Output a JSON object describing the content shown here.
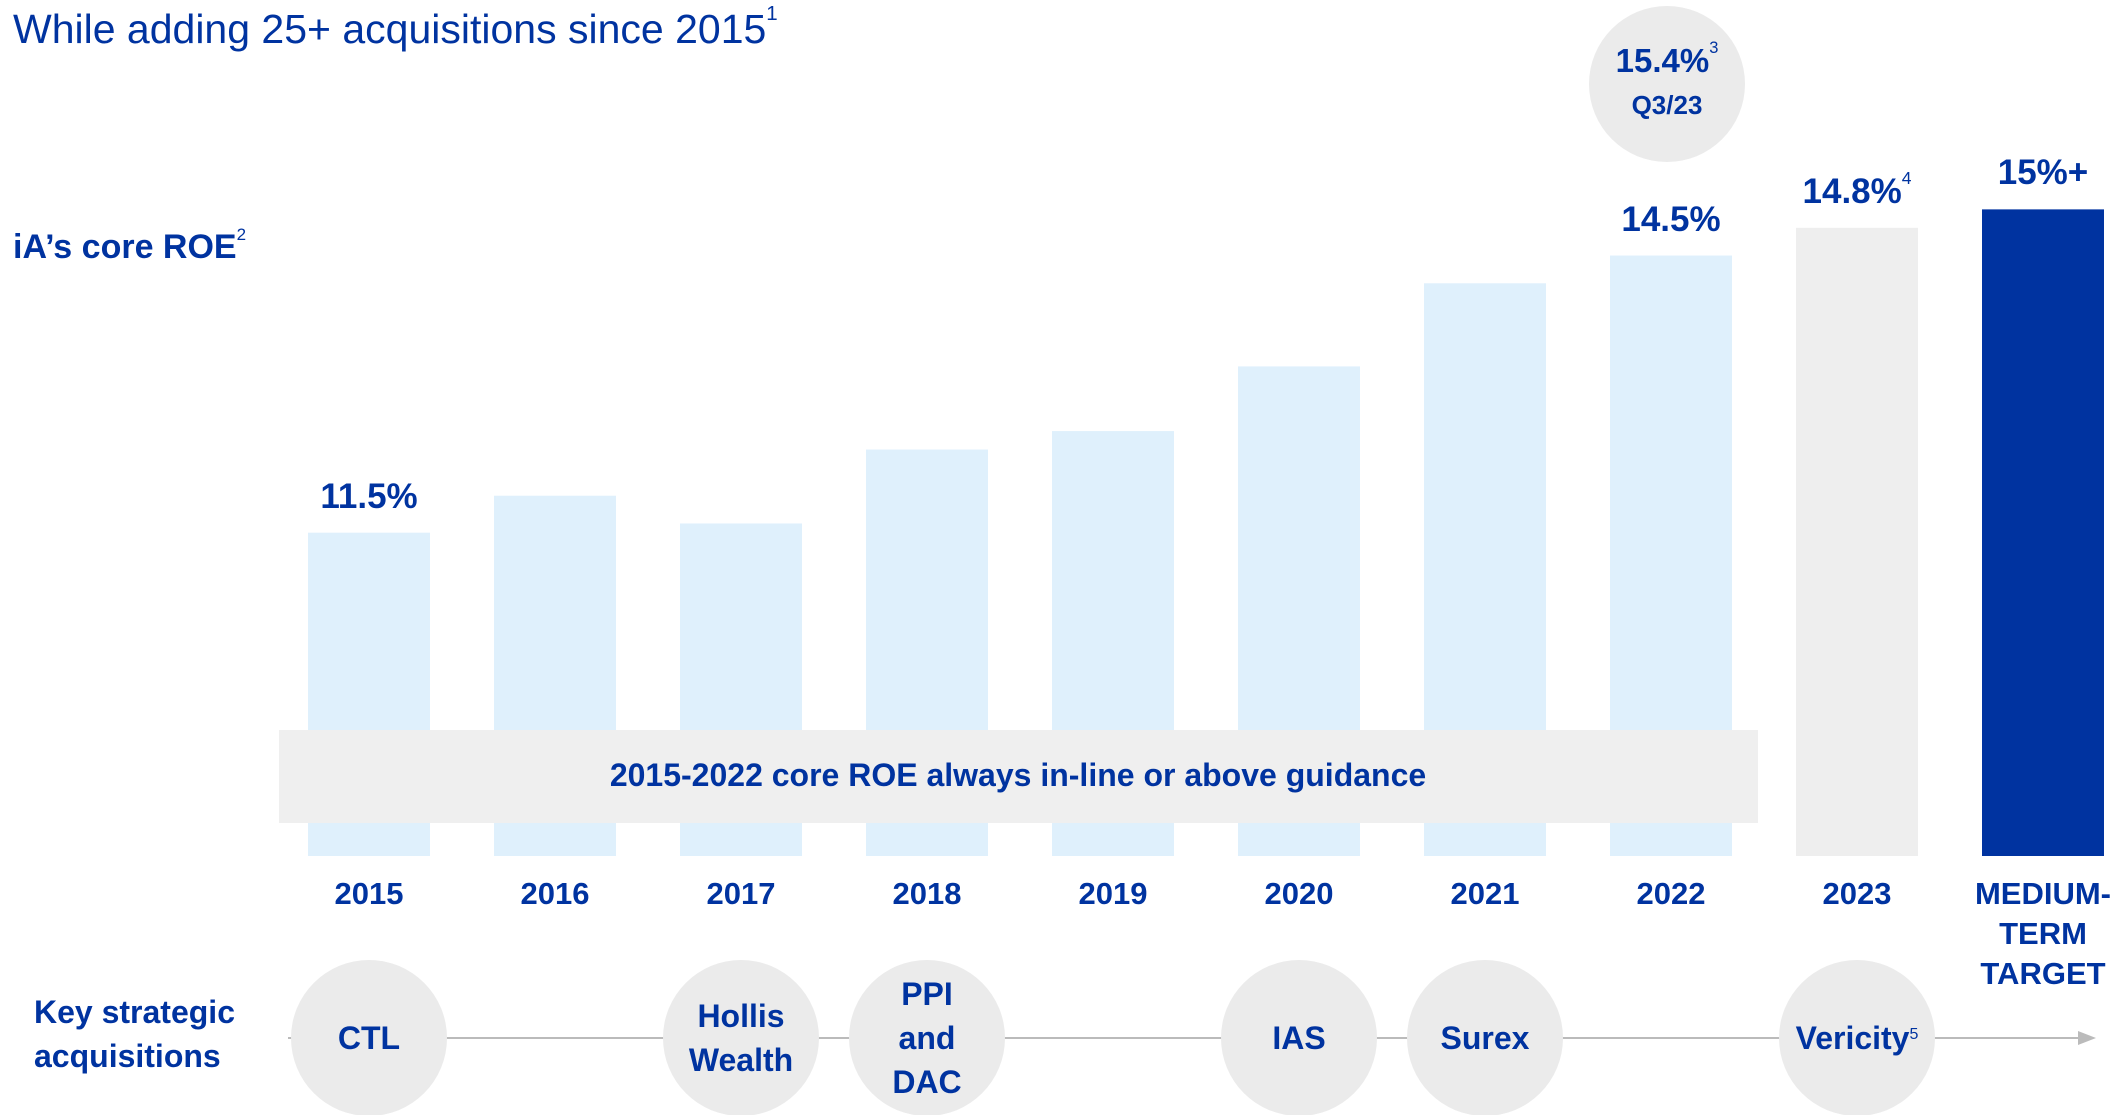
{
  "chart_data": {
    "type": "bar",
    "title": "While adding 25+ acquisitions since 2015",
    "title_note": "1",
    "subtitle": "iA’s core ROE",
    "subtitle_note": "2",
    "categories": [
      "2015",
      "2016",
      "2017",
      "2018",
      "2019",
      "2020",
      "2021",
      "2022",
      "2023",
      "MEDIUM-TERM TARGET"
    ],
    "values": [
      11.5,
      11.9,
      11.6,
      12.4,
      12.6,
      13.3,
      14.2,
      14.5,
      14.8,
      15
    ],
    "value_labels": [
      "11.5%",
      null,
      null,
      null,
      null,
      null,
      null,
      "14.5%",
      "14.8%",
      "15%+"
    ],
    "value_label_notes": [
      null,
      null,
      null,
      null,
      null,
      null,
      null,
      null,
      "4",
      null
    ],
    "colors": [
      "#dff0fc",
      "#dff0fc",
      "#dff0fc",
      "#dff0fc",
      "#dff0fc",
      "#dff0fc",
      "#dff0fc",
      "#dff0fc",
      "#eeeeee",
      "#0033a0"
    ],
    "ylim": [
      8,
      16
    ],
    "band_text": "2015-2022 core ROE always in-line or above guidance",
    "bubble": {
      "value": "15.4%",
      "note": "3",
      "label": "Q3/23"
    },
    "acquisitions_label": "Key strategic acquisitions",
    "acquisitions": [
      {
        "category": 0,
        "lines": [
          "CTL"
        ]
      },
      {
        "category": 2,
        "lines": [
          "Hollis",
          "Wealth"
        ]
      },
      {
        "category": 3,
        "lines": [
          "PPI",
          "and",
          "DAC"
        ]
      },
      {
        "category": 5,
        "lines": [
          "IAS"
        ]
      },
      {
        "category": 6,
        "lines": [
          "Surex"
        ]
      },
      {
        "category": 8,
        "lines": [
          "Vericity"
        ],
        "note": "5"
      }
    ]
  }
}
